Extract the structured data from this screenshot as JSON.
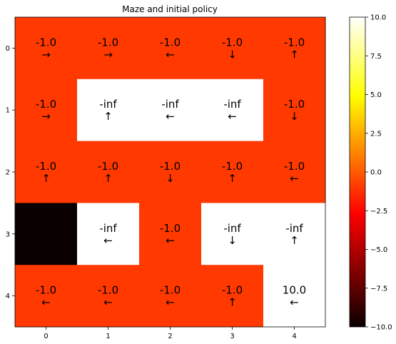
{
  "chart_data": {
    "type": "heatmap",
    "title": "Maze and initial policy",
    "x_ticks": [
      "0",
      "1",
      "2",
      "3",
      "4"
    ],
    "y_ticks": [
      "0",
      "1",
      "2",
      "3",
      "4"
    ],
    "color_scale": {
      "min": -10.0,
      "max": 10.0,
      "colormap": "hot"
    },
    "colorbar_ticks": [
      "10.0",
      "7.5",
      "5.0",
      "2.5",
      "0.0",
      "−2.5",
      "−5.0",
      "−7.5",
      "−10.0"
    ],
    "colorbar_values": [
      10.0,
      7.5,
      5.0,
      2.5,
      0.0,
      -2.5,
      -5.0,
      -7.5,
      -10.0
    ],
    "rows": [
      [
        {
          "label": "-1.0",
          "value": -1.0,
          "arrow": "→"
        },
        {
          "label": "-1.0",
          "value": -1.0,
          "arrow": "→"
        },
        {
          "label": "-1.0",
          "value": -1.0,
          "arrow": "←"
        },
        {
          "label": "-1.0",
          "value": -1.0,
          "arrow": "↓"
        },
        {
          "label": "-1.0",
          "value": -1.0,
          "arrow": "↑"
        }
      ],
      [
        {
          "label": "-1.0",
          "value": -1.0,
          "arrow": "→"
        },
        {
          "label": "-inf",
          "value": "-inf",
          "arrow": "↑"
        },
        {
          "label": "-inf",
          "value": "-inf",
          "arrow": "←"
        },
        {
          "label": "-inf",
          "value": "-inf",
          "arrow": "←"
        },
        {
          "label": "-1.0",
          "value": -1.0,
          "arrow": "↓"
        }
      ],
      [
        {
          "label": "-1.0",
          "value": -1.0,
          "arrow": "↑"
        },
        {
          "label": "-1.0",
          "value": -1.0,
          "arrow": "↑"
        },
        {
          "label": "-1.0",
          "value": -1.0,
          "arrow": "↓"
        },
        {
          "label": "-1.0",
          "value": -1.0,
          "arrow": "↑"
        },
        {
          "label": "-1.0",
          "value": -1.0,
          "arrow": "←"
        }
      ],
      [
        {
          "label": "",
          "value": -10.0,
          "arrow": ""
        },
        {
          "label": "-inf",
          "value": "-inf",
          "arrow": "←"
        },
        {
          "label": "-1.0",
          "value": -1.0,
          "arrow": "←"
        },
        {
          "label": "-inf",
          "value": "-inf",
          "arrow": "↓"
        },
        {
          "label": "-inf",
          "value": "-inf",
          "arrow": "↑"
        }
      ],
      [
        {
          "label": "-1.0",
          "value": -1.0,
          "arrow": "←"
        },
        {
          "label": "-1.0",
          "value": -1.0,
          "arrow": "←"
        },
        {
          "label": "-1.0",
          "value": -1.0,
          "arrow": "←"
        },
        {
          "label": "-1.0",
          "value": -1.0,
          "arrow": "↑"
        },
        {
          "label": "10.0",
          "value": 10.0,
          "arrow": "←"
        }
      ]
    ]
  }
}
